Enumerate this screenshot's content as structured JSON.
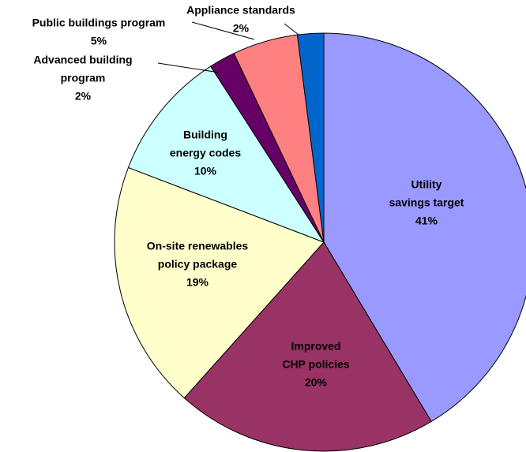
{
  "chart_data": {
    "type": "pie",
    "categories": [
      [
        "Utility",
        "savings target"
      ],
      [
        "Improved",
        "CHP policies"
      ],
      [
        "On-site renewables",
        "policy package"
      ],
      [
        "Building",
        "energy codes"
      ],
      [
        "Advanced building",
        "program"
      ],
      [
        "Public buildings program"
      ],
      [
        "Appliance standards"
      ]
    ],
    "values": [
      41,
      20,
      19,
      10,
      2,
      5,
      2
    ],
    "value_labels": [
      "41%",
      "20%",
      "19%",
      "10%",
      "2%",
      "5%",
      "2%"
    ],
    "colors": [
      "#9999ff",
      "#993366",
      "#ffffcc",
      "#ccffff",
      "#660066",
      "#ff8080",
      "#0066cc"
    ]
  }
}
